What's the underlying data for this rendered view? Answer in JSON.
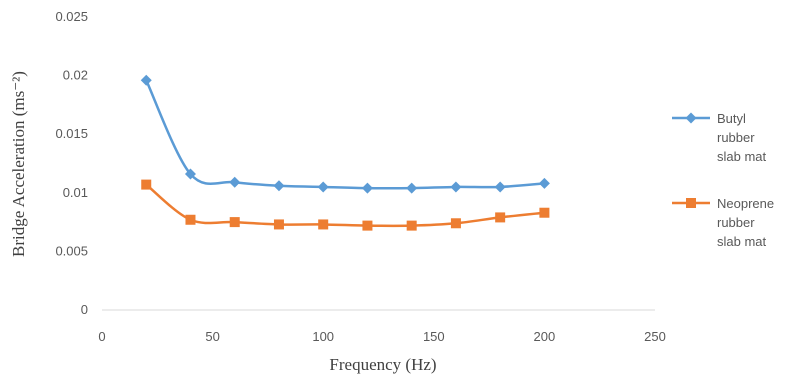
{
  "chart_data": {
    "type": "line",
    "title": "",
    "xlabel": "Frequency  (Hz)",
    "ylabel": "Bridge  Acceleration  (ms⁻²)",
    "xlim": [
      0,
      250
    ],
    "ylim": [
      0,
      0.025
    ],
    "xticks": [
      "0",
      "50",
      "100",
      "150",
      "200",
      "250"
    ],
    "yticks": [
      "0",
      "0.005",
      "0.01",
      "0.015",
      "0.02",
      "0.025"
    ],
    "grid": false,
    "legend_position": "right",
    "smooth": true,
    "series": [
      {
        "name": "Butyl rubber slab mat",
        "name_lines": [
          "Butyl",
          "rubber",
          "slab mat"
        ],
        "color": "#5b9bd5",
        "marker": "diamond",
        "x": [
          20,
          40,
          60,
          80,
          100,
          120,
          140,
          160,
          180,
          200
        ],
        "y": [
          0.0196,
          0.0116,
          0.0109,
          0.0106,
          0.0105,
          0.0104,
          0.0104,
          0.0105,
          0.0105,
          0.0108
        ]
      },
      {
        "name": "Neoprene rubber slab mat",
        "name_lines": [
          "Neoprene",
          "rubber",
          "slab mat"
        ],
        "color": "#ed7d31",
        "marker": "square",
        "x": [
          20,
          40,
          60,
          80,
          100,
          120,
          140,
          160,
          180,
          200
        ],
        "y": [
          0.0107,
          0.0077,
          0.0075,
          0.0073,
          0.0073,
          0.0072,
          0.0072,
          0.0074,
          0.0079,
          0.0083
        ]
      }
    ]
  }
}
